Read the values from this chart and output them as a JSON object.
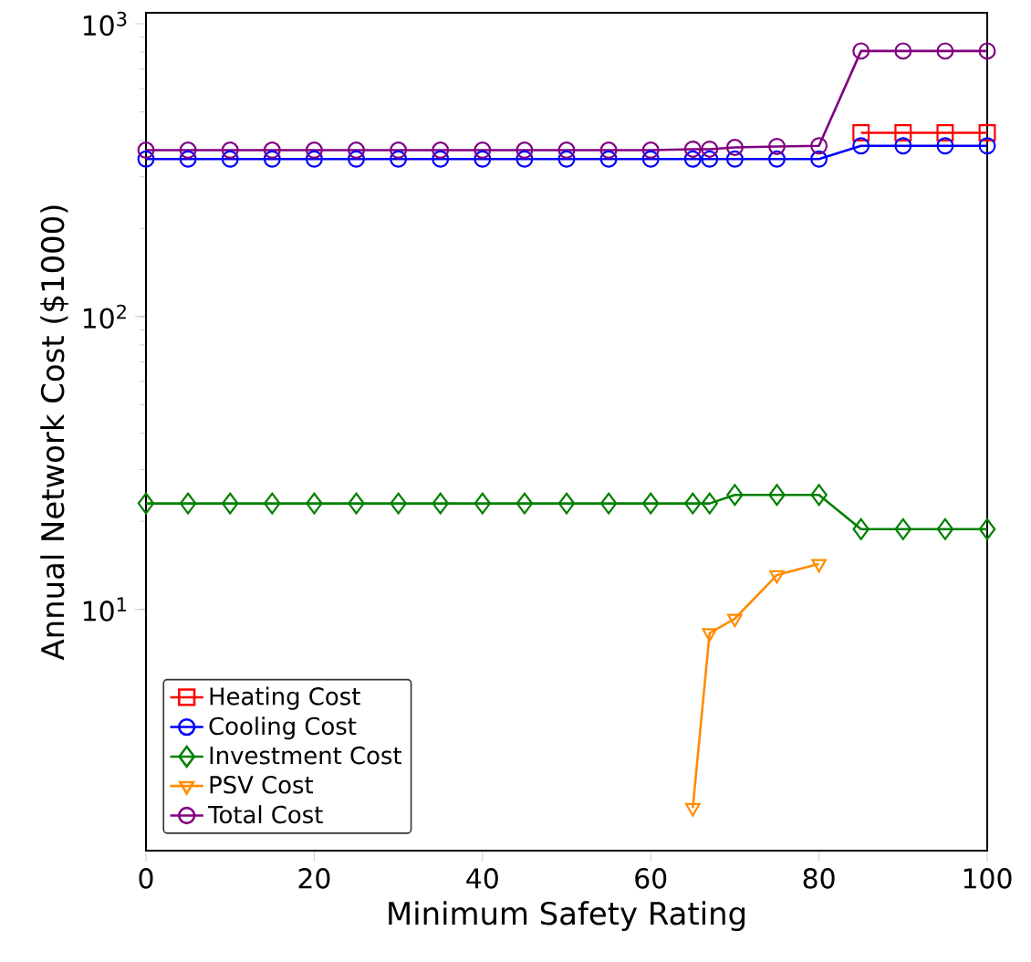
{
  "chart_data": {
    "type": "line",
    "xlabel": "Minimum Safety Rating",
    "ylabel": "Annual Network Cost ($1000)",
    "x": [
      0,
      5,
      10,
      15,
      20,
      25,
      30,
      35,
      40,
      45,
      50,
      55,
      60,
      65,
      67,
      70,
      75,
      80,
      85,
      90,
      95,
      100
    ],
    "series": [
      {
        "name": "Heating Cost",
        "color": "#ff0000",
        "marker": "square",
        "values": [
          null,
          null,
          null,
          null,
          null,
          null,
          null,
          null,
          null,
          null,
          null,
          null,
          null,
          null,
          null,
          null,
          null,
          null,
          424,
          424,
          424,
          424
        ]
      },
      {
        "name": "Cooling Cost",
        "color": "#0000ff",
        "marker": "circle",
        "values": [
          345,
          345,
          345,
          345,
          345,
          345,
          345,
          345,
          345,
          345,
          345,
          345,
          345,
          345,
          345,
          345,
          345,
          345,
          383,
          383,
          383,
          383
        ]
      },
      {
        "name": "Investment Cost",
        "color": "#008000",
        "marker": "diamond",
        "values": [
          23,
          23,
          23,
          23,
          23,
          23,
          23,
          23,
          23,
          23,
          23,
          23,
          23,
          23,
          23,
          24.6,
          24.6,
          24.6,
          18.8,
          18.8,
          18.8,
          18.8
        ]
      },
      {
        "name": "PSV Cost",
        "color": "#ff8c00",
        "marker": "triangle",
        "values": [
          null,
          null,
          null,
          null,
          null,
          null,
          null,
          null,
          null,
          null,
          null,
          null,
          null,
          2.1,
          8.3,
          9.3,
          13.1,
          14.3,
          null,
          null,
          null,
          null
        ]
      },
      {
        "name": "Total Cost",
        "color": "#800080",
        "marker": "circle",
        "values": [
          370,
          370,
          370,
          370,
          370,
          370,
          370,
          370,
          370,
          370,
          370,
          370,
          370,
          373,
          373,
          378,
          381,
          383,
          807,
          807,
          807,
          807
        ]
      }
    ],
    "log": "y",
    "xlim": [
      0,
      100
    ],
    "xticks": [
      0,
      20,
      40,
      60,
      80,
      100
    ],
    "ylim": [
      1.5,
      1090
    ],
    "yticks": [
      {
        "value": 10,
        "label": "10$^{1}$"
      },
      {
        "value": 100,
        "label": "10$^{2}$"
      },
      {
        "value": 1000,
        "label": "10$^{3}$"
      }
    ],
    "legend": "bottom left",
    "grid": false
  }
}
